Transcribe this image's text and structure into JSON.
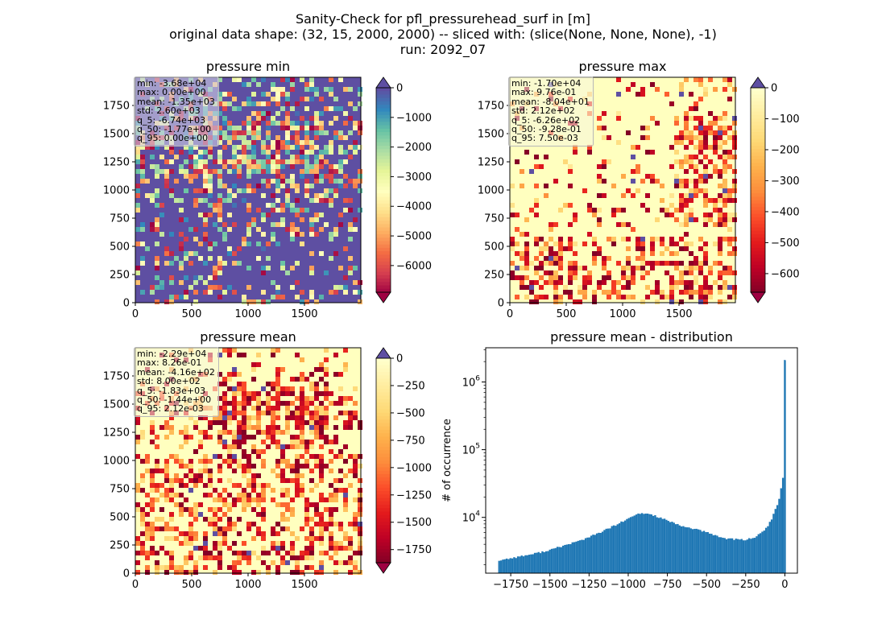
{
  "suptitle": {
    "line1": "Sanity-Check for pfl_pressurehead_surf in [m]",
    "line2": "original data shape: (32, 15, 2000, 2000) -- sliced with: (slice(None, None, None), -1)",
    "line3": "run: 2092_07"
  },
  "chart_data": [
    {
      "type": "heatmap",
      "title": "pressure min",
      "xlim": [
        0,
        2000
      ],
      "ylim": [
        0,
        2000
      ],
      "xticks": [
        "0",
        "500",
        "1000",
        "1500"
      ],
      "yticks": [
        "0",
        "250",
        "500",
        "750",
        "1000",
        "1250",
        "1500",
        "1750"
      ],
      "colorbar": {
        "vmin": -6900,
        "vmax": 0,
        "ticks": [
          "0",
          "−1000",
          "−2000",
          "−3000",
          "−4000",
          "−5000",
          "−6000"
        ],
        "tick_values": [
          0,
          -1000,
          -2000,
          -3000,
          -4000,
          -5000,
          -6000
        ],
        "extend": "both",
        "colormap": "Spectral"
      },
      "stats": [
        "min: -3.68e+04",
        "max: 0.00e+00",
        "mean: -1.35e+03",
        "std: 2.60e+03",
        "q_5: -6.74e+03",
        "q_50: -1.77e+00",
        "q_95: 0.00e+00"
      ],
      "dominant_color": "#5e4fa2"
    },
    {
      "type": "heatmap",
      "title": "pressure max",
      "xlim": [
        0,
        2000
      ],
      "ylim": [
        0,
        2000
      ],
      "xticks": [
        "0",
        "500",
        "1000",
        "1500"
      ],
      "yticks": [
        "0",
        "250",
        "500",
        "750",
        "1000",
        "1250",
        "1500",
        "1750"
      ],
      "colorbar": {
        "vmin": -660,
        "vmax": 0,
        "ticks": [
          "0",
          "−100",
          "−200",
          "−300",
          "−400",
          "−500",
          "−600"
        ],
        "tick_values": [
          0,
          -100,
          -200,
          -300,
          -400,
          -500,
          -600
        ],
        "extend": "both",
        "colormap": "YlOrRd_r"
      },
      "stats": [
        "min: -1.70e+04",
        "max: 9.76e-01",
        "mean: -8.04e+01",
        "std: 2.12e+02",
        "q_5: -6.26e+02",
        "q_50: -9.28e-01",
        "q_95: 7.50e-03"
      ],
      "dominant_color": "#ffffbf"
    },
    {
      "type": "heatmap",
      "title": "pressure mean",
      "xlim": [
        0,
        2000
      ],
      "ylim": [
        0,
        2000
      ],
      "xticks": [
        "0",
        "500",
        "1000",
        "1500"
      ],
      "yticks": [
        "0",
        "250",
        "500",
        "750",
        "1000",
        "1250",
        "1500",
        "1750"
      ],
      "colorbar": {
        "vmin": -1870,
        "vmax": 0,
        "ticks": [
          "0",
          "−250",
          "−500",
          "−750",
          "−1000",
          "−1250",
          "−1500",
          "−1750"
        ],
        "tick_values": [
          0,
          -250,
          -500,
          -750,
          -1000,
          -1250,
          -1500,
          -1750
        ],
        "extend": "max",
        "colormap": "YlOrRd_r"
      },
      "stats": [
        "min: -2.29e+04",
        "max: 8.26e-01",
        "mean: -4.16e+02",
        "std: 8.00e+02",
        "q_5: -1.83e+03",
        "q_50: -1.44e+00",
        "q_95: 2.12e-03"
      ],
      "dominant_color": "#ffffbf"
    },
    {
      "type": "bar",
      "title": "pressure mean - distribution",
      "ylabel": "# of occurrence",
      "xlabel": "",
      "yscale": "log",
      "xlim": [
        -1910,
        80
      ],
      "ylim": [
        1500,
        3200000
      ],
      "xticks": [
        "−1750",
        "−1500",
        "−1250",
        "−1000",
        "−750",
        "−500",
        "−250",
        "0"
      ],
      "xtick_values": [
        -1750,
        -1500,
        -1250,
        -1000,
        -750,
        -500,
        -250,
        0
      ],
      "yticks": [
        "10",
        "10",
        "10"
      ],
      "ytick_exponents": [
        "4",
        "5",
        "6"
      ],
      "ytick_values": [
        10000,
        100000,
        1000000
      ],
      "color": "#1f77b4",
      "profile_x": [
        -1830,
        -1750,
        -1600,
        -1500,
        -1400,
        -1300,
        -1200,
        -1100,
        -1000,
        -950,
        -900,
        -850,
        -800,
        -750,
        -700,
        -650,
        -600,
        -550,
        -500,
        -450,
        -400,
        -350,
        -300,
        -250,
        -200,
        -150,
        -100,
        -80,
        -60,
        -40,
        -30,
        -20,
        -10,
        -5,
        0
      ],
      "profile_y": [
        2300,
        2500,
        2900,
        3300,
        3900,
        4600,
        5700,
        7300,
        9500,
        11000,
        11500,
        11000,
        10000,
        9000,
        8000,
        7300,
        7000,
        6500,
        6000,
        5500,
        5000,
        4800,
        4700,
        4700,
        5000,
        5800,
        8000,
        10000,
        13000,
        17000,
        22000,
        30000,
        40000,
        2100000,
        2100000
      ]
    }
  ]
}
